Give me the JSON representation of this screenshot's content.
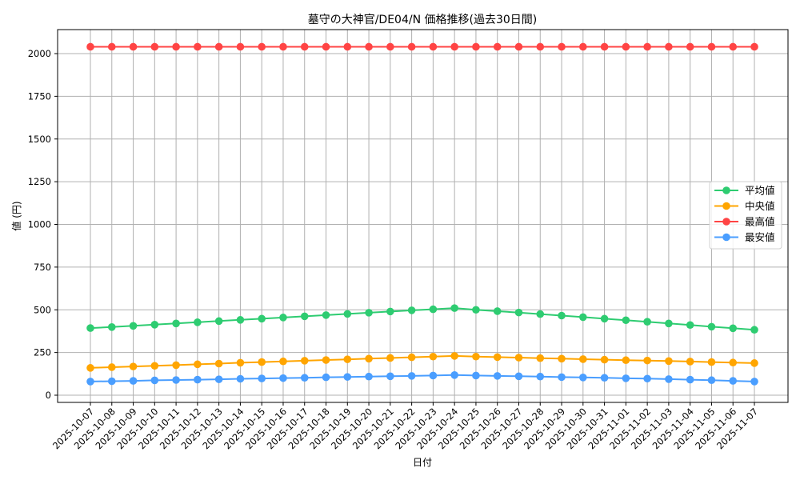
{
  "chart_data": {
    "type": "line",
    "title": "墓守の大神官/DE04/N 価格推移(過去30日間)",
    "xlabel": "日付",
    "ylabel": "値 (円)",
    "ylim": [
      -40,
      2140
    ],
    "yticks": [
      0,
      250,
      500,
      750,
      1000,
      1250,
      1500,
      1750,
      2000
    ],
    "grid": true,
    "legend_position": "center right",
    "x": [
      "2025-10-07",
      "2025-10-08",
      "2025-10-09",
      "2025-10-10",
      "2025-10-11",
      "2025-10-12",
      "2025-10-13",
      "2025-10-14",
      "2025-10-15",
      "2025-10-16",
      "2025-10-17",
      "2025-10-18",
      "2025-10-19",
      "2025-10-20",
      "2025-10-21",
      "2025-10-22",
      "2025-10-23",
      "2025-10-24",
      "2025-10-25",
      "2025-10-26",
      "2025-10-27",
      "2025-10-28",
      "2025-10-29",
      "2025-10-30",
      "2025-10-31",
      "2025-11-01",
      "2025-11-02",
      "2025-11-03",
      "2025-11-04",
      "2025-11-05",
      "2025-11-06",
      "2025-11-07"
    ],
    "series": [
      {
        "name": "平均値",
        "color": "#2ecc71",
        "values": [
          393,
          399,
          406,
          413,
          420,
          427,
          434,
          441,
          448,
          455,
          462,
          469,
          476,
          483,
          490,
          497,
          503,
          510,
          500,
          492,
          484,
          475,
          466,
          457,
          448,
          439,
          430,
          420,
          411,
          401,
          392,
          383
        ]
      },
      {
        "name": "中央値",
        "color": "#ffa500",
        "values": [
          160,
          164,
          168,
          172,
          176,
          181,
          185,
          190,
          194,
          198,
          202,
          206,
          210,
          214,
          218,
          222,
          226,
          230,
          226,
          223,
          220,
          217,
          214,
          211,
          208,
          205,
          203,
          200,
          197,
          194,
          191,
          188
        ]
      },
      {
        "name": "最高値",
        "color": "#ff4444",
        "values": [
          2040,
          2040,
          2040,
          2040,
          2040,
          2040,
          2040,
          2040,
          2040,
          2040,
          2040,
          2040,
          2040,
          2040,
          2040,
          2040,
          2040,
          2040,
          2040,
          2040,
          2040,
          2040,
          2040,
          2040,
          2040,
          2040,
          2040,
          2040,
          2040,
          2040,
          2040,
          2040
        ]
      },
      {
        "name": "最安値",
        "color": "#4a9eff",
        "values": [
          80,
          82,
          84,
          87,
          89,
          91,
          93,
          96,
          98,
          100,
          102,
          105,
          107,
          109,
          111,
          113,
          115,
          118,
          115,
          113,
          111,
          109,
          106,
          104,
          102,
          99,
          97,
          94,
          91,
          88,
          84,
          80
        ]
      }
    ]
  }
}
